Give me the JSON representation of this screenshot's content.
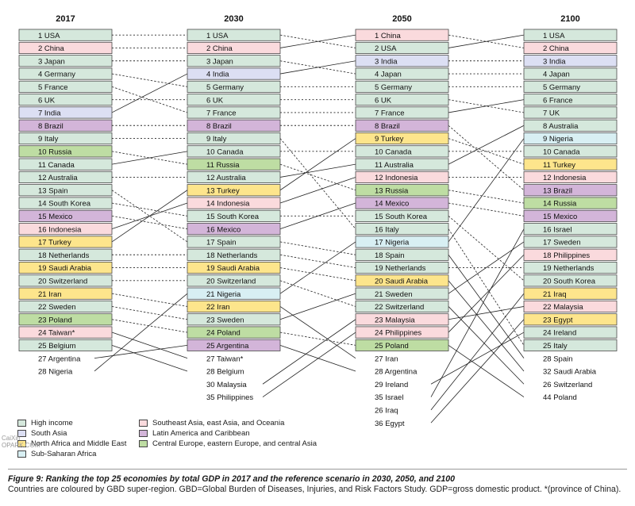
{
  "columns": [
    {
      "year": "2017",
      "box_count": 25,
      "items": [
        {
          "rank": "1",
          "name": "USA",
          "region": "hi"
        },
        {
          "rank": "2",
          "name": "China",
          "region": "se"
        },
        {
          "rank": "3",
          "name": "Japan",
          "region": "hi"
        },
        {
          "rank": "4",
          "name": "Germany",
          "region": "hi"
        },
        {
          "rank": "5",
          "name": "France",
          "region": "hi"
        },
        {
          "rank": "6",
          "name": "UK",
          "region": "hi"
        },
        {
          "rank": "7",
          "name": "India",
          "region": "sa"
        },
        {
          "rank": "8",
          "name": "Brazil",
          "region": "la"
        },
        {
          "rank": "9",
          "name": "Italy",
          "region": "hi"
        },
        {
          "rank": "10",
          "name": "Russia",
          "region": "ce"
        },
        {
          "rank": "11",
          "name": "Canada",
          "region": "hi"
        },
        {
          "rank": "12",
          "name": "Australia",
          "region": "hi"
        },
        {
          "rank": "13",
          "name": "Spain",
          "region": "hi"
        },
        {
          "rank": "14",
          "name": "South Korea",
          "region": "hi"
        },
        {
          "rank": "15",
          "name": "Mexico",
          "region": "la"
        },
        {
          "rank": "16",
          "name": "Indonesia",
          "region": "se"
        },
        {
          "rank": "17",
          "name": "Turkey",
          "region": "na"
        },
        {
          "rank": "18",
          "name": "Netherlands",
          "region": "hi"
        },
        {
          "rank": "19",
          "name": "Saudi Arabia",
          "region": "na"
        },
        {
          "rank": "20",
          "name": "Switzerland",
          "region": "hi"
        },
        {
          "rank": "21",
          "name": "Iran",
          "region": "na"
        },
        {
          "rank": "22",
          "name": "Sweden",
          "region": "hi"
        },
        {
          "rank": "23",
          "name": "Poland",
          "region": "ce"
        },
        {
          "rank": "24",
          "name": "Taiwan*",
          "region": "se"
        },
        {
          "rank": "25",
          "name": "Belgium",
          "region": "hi"
        },
        {
          "rank": "27",
          "name": "Argentina",
          "region": ""
        },
        {
          "rank": "28",
          "name": "Nigeria",
          "region": ""
        }
      ]
    },
    {
      "year": "2030",
      "box_count": 25,
      "items": [
        {
          "rank": "1",
          "name": "USA",
          "region": "hi"
        },
        {
          "rank": "2",
          "name": "China",
          "region": "se"
        },
        {
          "rank": "3",
          "name": "Japan",
          "region": "hi"
        },
        {
          "rank": "4",
          "name": "India",
          "region": "sa"
        },
        {
          "rank": "5",
          "name": "Germany",
          "region": "hi"
        },
        {
          "rank": "6",
          "name": "UK",
          "region": "hi"
        },
        {
          "rank": "7",
          "name": "France",
          "region": "hi"
        },
        {
          "rank": "8",
          "name": "Brazil",
          "region": "la"
        },
        {
          "rank": "9",
          "name": "Italy",
          "region": "hi"
        },
        {
          "rank": "10",
          "name": "Canada",
          "region": "hi"
        },
        {
          "rank": "11",
          "name": "Russia",
          "region": "ce"
        },
        {
          "rank": "12",
          "name": "Australia",
          "region": "hi"
        },
        {
          "rank": "13",
          "name": "Turkey",
          "region": "na"
        },
        {
          "rank": "14",
          "name": "Indonesia",
          "region": "se"
        },
        {
          "rank": "15",
          "name": "South Korea",
          "region": "hi"
        },
        {
          "rank": "16",
          "name": "Mexico",
          "region": "la"
        },
        {
          "rank": "17",
          "name": "Spain",
          "region": "hi"
        },
        {
          "rank": "18",
          "name": "Netherlands",
          "region": "hi"
        },
        {
          "rank": "19",
          "name": "Saudi Arabia",
          "region": "na"
        },
        {
          "rank": "20",
          "name": "Switzerland",
          "region": "hi"
        },
        {
          "rank": "21",
          "name": "Nigeria",
          "region": "ss"
        },
        {
          "rank": "22",
          "name": "Iran",
          "region": "na"
        },
        {
          "rank": "23",
          "name": "Sweden",
          "region": "hi"
        },
        {
          "rank": "24",
          "name": "Poland",
          "region": "ce"
        },
        {
          "rank": "25",
          "name": "Argentina",
          "region": "la"
        },
        {
          "rank": "27",
          "name": "Taiwan*",
          "region": ""
        },
        {
          "rank": "28",
          "name": "Belgium",
          "region": ""
        },
        {
          "rank": "30",
          "name": "Malaysia",
          "region": ""
        },
        {
          "rank": "35",
          "name": "Philippines",
          "region": ""
        }
      ]
    },
    {
      "year": "2050",
      "box_count": 25,
      "items": [
        {
          "rank": "1",
          "name": "China",
          "region": "se"
        },
        {
          "rank": "2",
          "name": "USA",
          "region": "hi"
        },
        {
          "rank": "3",
          "name": "India",
          "region": "sa"
        },
        {
          "rank": "4",
          "name": "Japan",
          "region": "hi"
        },
        {
          "rank": "5",
          "name": "Germany",
          "region": "hi"
        },
        {
          "rank": "6",
          "name": "UK",
          "region": "hi"
        },
        {
          "rank": "7",
          "name": "France",
          "region": "hi"
        },
        {
          "rank": "8",
          "name": "Brazil",
          "region": "la"
        },
        {
          "rank": "9",
          "name": "Turkey",
          "region": "na"
        },
        {
          "rank": "10",
          "name": "Canada",
          "region": "hi"
        },
        {
          "rank": "11",
          "name": "Australia",
          "region": "hi"
        },
        {
          "rank": "12",
          "name": "Indonesia",
          "region": "se"
        },
        {
          "rank": "13",
          "name": "Russia",
          "region": "ce"
        },
        {
          "rank": "14",
          "name": "Mexico",
          "region": "la"
        },
        {
          "rank": "15",
          "name": "South Korea",
          "region": "hi"
        },
        {
          "rank": "16",
          "name": "Italy",
          "region": "hi"
        },
        {
          "rank": "17",
          "name": "Nigeria",
          "region": "ss"
        },
        {
          "rank": "18",
          "name": "Spain",
          "region": "hi"
        },
        {
          "rank": "19",
          "name": "Netherlands",
          "region": "hi"
        },
        {
          "rank": "20",
          "name": "Saudi Arabia",
          "region": "na"
        },
        {
          "rank": "21",
          "name": "Sweden",
          "region": "hi"
        },
        {
          "rank": "22",
          "name": "Switzerland",
          "region": "hi"
        },
        {
          "rank": "23",
          "name": "Malaysia",
          "region": "se"
        },
        {
          "rank": "24",
          "name": "Philippines",
          "region": "se"
        },
        {
          "rank": "25",
          "name": "Poland",
          "region": "ce"
        },
        {
          "rank": "27",
          "name": "Iran",
          "region": ""
        },
        {
          "rank": "28",
          "name": "Argentina",
          "region": ""
        },
        {
          "rank": "29",
          "name": "Ireland",
          "region": ""
        },
        {
          "rank": "35",
          "name": "Israel",
          "region": ""
        },
        {
          "rank": "26",
          "name": "Iraq",
          "region": ""
        },
        {
          "rank": "36",
          "name": "Egypt",
          "region": ""
        }
      ]
    },
    {
      "year": "2100",
      "box_count": 25,
      "items": [
        {
          "rank": "1",
          "name": "USA",
          "region": "hi"
        },
        {
          "rank": "2",
          "name": "China",
          "region": "se"
        },
        {
          "rank": "3",
          "name": "India",
          "region": "sa"
        },
        {
          "rank": "4",
          "name": "Japan",
          "region": "hi"
        },
        {
          "rank": "5",
          "name": "Germany",
          "region": "hi"
        },
        {
          "rank": "6",
          "name": "France",
          "region": "hi"
        },
        {
          "rank": "7",
          "name": "UK",
          "region": "hi"
        },
        {
          "rank": "8",
          "name": "Australia",
          "region": "hi"
        },
        {
          "rank": "9",
          "name": "Nigeria",
          "region": "ss"
        },
        {
          "rank": "10",
          "name": "Canada",
          "region": "hi"
        },
        {
          "rank": "11",
          "name": "Turkey",
          "region": "na"
        },
        {
          "rank": "12",
          "name": "Indonesia",
          "region": "se"
        },
        {
          "rank": "13",
          "name": "Brazil",
          "region": "la"
        },
        {
          "rank": "14",
          "name": "Russia",
          "region": "ce"
        },
        {
          "rank": "15",
          "name": "Mexico",
          "region": "la"
        },
        {
          "rank": "16",
          "name": "Israel",
          "region": "hi"
        },
        {
          "rank": "17",
          "name": "Sweden",
          "region": "hi"
        },
        {
          "rank": "18",
          "name": "Philippines",
          "region": "se"
        },
        {
          "rank": "19",
          "name": "Netherlands",
          "region": "hi"
        },
        {
          "rank": "20",
          "name": "South Korea",
          "region": "hi"
        },
        {
          "rank": "21",
          "name": "Iraq",
          "region": "na"
        },
        {
          "rank": "22",
          "name": "Malaysia",
          "region": "se"
        },
        {
          "rank": "23",
          "name": "Egypt",
          "region": "na"
        },
        {
          "rank": "24",
          "name": "Ireland",
          "region": "hi"
        },
        {
          "rank": "25",
          "name": "Italy",
          "region": "hi"
        },
        {
          "rank": "28",
          "name": "Spain",
          "region": ""
        },
        {
          "rank": "32",
          "name": "Saudi Arabia",
          "region": ""
        },
        {
          "rank": "26",
          "name": "Switzerland",
          "region": ""
        },
        {
          "rank": "44",
          "name": "Poland",
          "region": ""
        }
      ]
    }
  ],
  "regions": {
    "hi": {
      "fill": "#d5e8dc"
    },
    "se": {
      "fill": "#fadadd"
    },
    "sa": {
      "fill": "#dcdff3"
    },
    "na": {
      "fill": "#fde58c"
    },
    "ss": {
      "fill": "#d8eff3"
    },
    "la": {
      "fill": "#d3b5d9"
    },
    "ce": {
      "fill": "#bedda3"
    }
  },
  "legend": [
    {
      "label": "High income",
      "color": "#d5e8dc"
    },
    {
      "label": "South Asia",
      "color": "#dcdff3"
    },
    {
      "label": "North Africa and Middle East",
      "color": "#fde58c"
    },
    {
      "label": "Sub-Saharan Africa",
      "color": "#d8eff3"
    },
    {
      "label": "Southeast Asia, east Asia, and Oceania",
      "color": "#fadadd"
    },
    {
      "label": "Latin America and Caribbean",
      "color": "#d3b5d9"
    },
    {
      "label": "Central Europe, eastern Europe, and central Asia",
      "color": "#bedda3"
    }
  ],
  "caption": {
    "title": "Figure 9: Ranking the top 25 economies by total GDP in 2017 and the reference scenario in 2030, 2050, and 2100",
    "note": "Countries are coloured by GBD super-region. GBD=Global Burden of Diseases, Injuries, and Risk Factors Study. GDP=gross domestic product. *(province of China)."
  },
  "watermark": [
    "CaiXin",
    "OPARK.COM"
  ]
}
